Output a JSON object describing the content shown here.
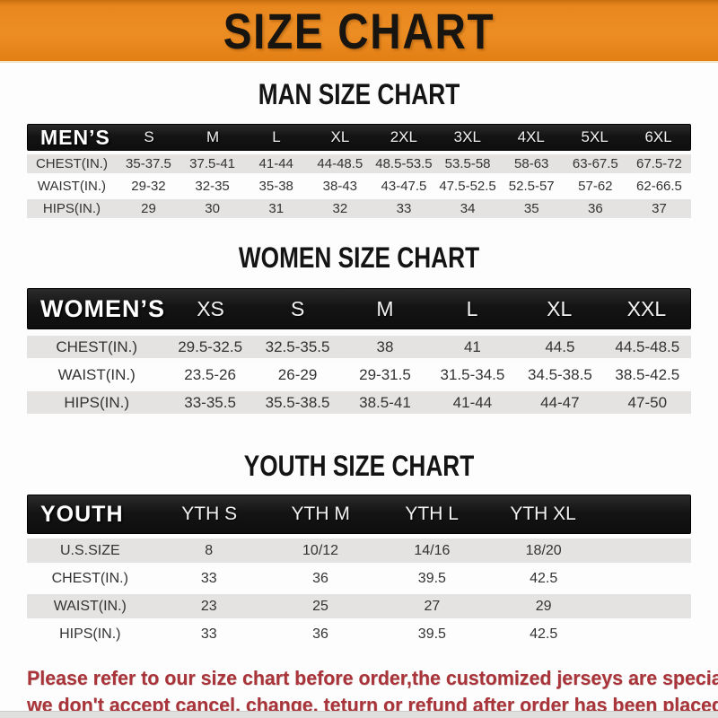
{
  "banner": {
    "title": "SIZE CHART",
    "bg_color": "#E8871E",
    "text_color": "#181410"
  },
  "colors": {
    "header_bar": "#141414",
    "shaded_row": "#E4E3E1",
    "notice_red": "#A93439"
  },
  "sections": [
    {
      "title": "MAN SIZE CHART",
      "header_label": "MEN’S",
      "columns": [
        "S",
        "M",
        "L",
        "XL",
        "2XL",
        "3XL",
        "4XL",
        "5XL",
        "6XL"
      ],
      "rows": [
        {
          "label": "CHEST(IN.)",
          "values": [
            "35-37.5",
            "37.5-41",
            "41-44",
            "44-48.5",
            "48.5-53.5",
            "53.5-58",
            "58-63",
            "63-67.5",
            "67.5-72"
          ]
        },
        {
          "label": "WAIST(IN.)",
          "values": [
            "29-32",
            "32-35",
            "35-38",
            "38-43",
            "43-47.5",
            "47.5-52.5",
            "52.5-57",
            "57-62",
            "62-66.5"
          ]
        },
        {
          "label": "HIPS(IN.)",
          "values": [
            "29",
            "30",
            "31",
            "32",
            "33",
            "34",
            "35",
            "36",
            "37"
          ]
        }
      ]
    },
    {
      "title": "WOMEN SIZE CHART",
      "header_label": "WOMEN’S",
      "columns": [
        "XS",
        "S",
        "M",
        "L",
        "XL",
        "XXL"
      ],
      "rows": [
        {
          "label": "CHEST(IN.)",
          "values": [
            "29.5-32.5",
            "32.5-35.5",
            "38",
            "41",
            "44.5",
            "44.5-48.5"
          ]
        },
        {
          "label": "WAIST(IN.)",
          "values": [
            "23.5-26",
            "26-29",
            "29-31.5",
            "31.5-34.5",
            "34.5-38.5",
            "38.5-42.5"
          ]
        },
        {
          "label": "HIPS(IN.)",
          "values": [
            "33-35.5",
            "35.5-38.5",
            "38.5-41",
            "41-44",
            "44-47",
            "47-50"
          ]
        }
      ]
    },
    {
      "title": "YOUTH SIZE CHART",
      "header_label": "YOUTH",
      "columns": [
        "YTH S",
        "YTH M",
        "YTH L",
        "YTH XL"
      ],
      "rows": [
        {
          "label": "U.S.SIZE",
          "values": [
            "8",
            "10/12",
            "14/16",
            "18/20"
          ]
        },
        {
          "label": "CHEST(IN.)",
          "values": [
            "33",
            "36",
            "39.5",
            "42.5"
          ]
        },
        {
          "label": "WAIST(IN.)",
          "values": [
            "23",
            "25",
            "27",
            "29"
          ]
        },
        {
          "label": "HIPS(IN.)",
          "values": [
            "33",
            "36",
            "39.5",
            "42.5"
          ]
        }
      ]
    }
  ],
  "footer": {
    "line1": "Please refer to our size chart before order,the customized jerseys are special products,",
    "line2": "we don't accept cancel, change, teturn or refund after order has been placed!"
  }
}
